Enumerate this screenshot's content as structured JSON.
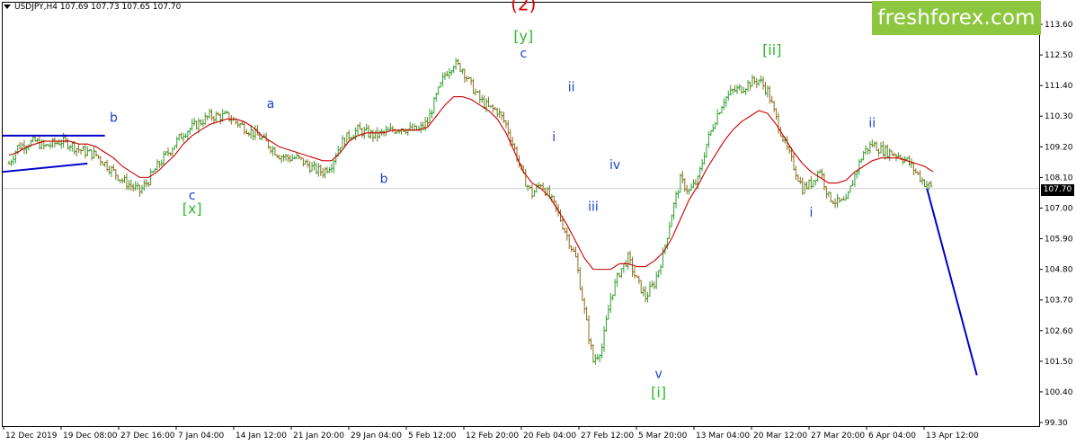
{
  "header": {
    "symbol_info": "USDJPY,H4  107.69 107.73 107.65 107.70"
  },
  "brand": {
    "label": "freshforex.com"
  },
  "current_price": {
    "label": "107.70"
  },
  "colors": {
    "bull": "#2ea02e",
    "bear": "#8b6d1a",
    "ma": "#cc0000",
    "trend": "#0000cc",
    "wave_blue": "#1a3fd4",
    "wave_green": "#2eb82e",
    "wave_red": "#dd0000",
    "brand": "#8dc63f"
  },
  "chart_data": {
    "type": "line",
    "title": "",
    "xlabel": "",
    "ylabel": "",
    "ylim": [
      99.3,
      114.15
    ],
    "y_ticks": [
      "113.60",
      "112.50",
      "111.40",
      "110.30",
      "109.20",
      "108.10",
      "107.00",
      "105.90",
      "104.80",
      "103.70",
      "102.60",
      "101.50",
      "100.40",
      "99.30"
    ],
    "x_ticks": [
      "12 Dec 2019",
      "19 Dec 08:00",
      "27 Dec 16:00",
      "7 Jan 04:00",
      "14 Jan 12:00",
      "21 Jan 20:00",
      "29 Jan 04:00",
      "5 Feb 12:00",
      "12 Feb 20:00",
      "20 Feb 04:00",
      "27 Feb 12:00",
      "5 Mar 20:00",
      "13 Mar 04:00",
      "20 Mar 12:00",
      "27 Mar 20:00",
      "6 Apr 04:00",
      "13 Apr 12:00"
    ],
    "current_price": 107.7,
    "series": [
      {
        "values": [
          108.6,
          109.2,
          109.3,
          109.4,
          109.2,
          109.3,
          109.4,
          109.3,
          109.1,
          109.0,
          108.9,
          108.6,
          108.3,
          108.0,
          107.8,
          107.6,
          108.0,
          108.5,
          108.9,
          109.3,
          109.7,
          109.9,
          110.1,
          110.3,
          110.3,
          110.3,
          110.1,
          109.9,
          109.7,
          109.5,
          109.2,
          108.9,
          108.8,
          108.8,
          108.6,
          108.4,
          108.3,
          108.6,
          109.3,
          109.6,
          109.8,
          109.7,
          109.6,
          109.7,
          109.8,
          109.9,
          109.8,
          109.8,
          110.1,
          111.0,
          111.8,
          112.2,
          112.0,
          111.4,
          110.9,
          110.6,
          110.5,
          110.0,
          109.1,
          108.1,
          107.5,
          107.9,
          107.4,
          106.8,
          106.0,
          105.2,
          103.3,
          101.5,
          102.0,
          103.8,
          104.7,
          105.2,
          104.4,
          103.8,
          104.3,
          105.3,
          106.8,
          108.0,
          107.6,
          108.0,
          109.3,
          110.2,
          110.9,
          111.2,
          111.3,
          111.5,
          111.6,
          111.2,
          110.2,
          109.3,
          108.5,
          107.7,
          107.9,
          108.4,
          107.4,
          107.2,
          107.2,
          108.2,
          109.0,
          109.3,
          109.1,
          109.0,
          108.9,
          108.7,
          108.3,
          107.9,
          107.7
        ]
      },
      {
        "values": [
          108.9,
          109.0,
          109.2,
          109.3,
          109.4,
          109.4,
          109.4,
          109.4,
          109.3,
          109.3,
          109.2,
          109.0,
          108.8,
          108.5,
          108.3,
          108.1,
          108.1,
          108.3,
          108.6,
          108.9,
          109.3,
          109.6,
          109.8,
          110.0,
          110.1,
          110.2,
          110.2,
          110.1,
          109.9,
          109.6,
          109.4,
          109.2,
          109.1,
          109.0,
          108.9,
          108.8,
          108.7,
          108.7,
          109.0,
          109.4,
          109.6,
          109.7,
          109.7,
          109.7,
          109.8,
          109.8,
          109.8,
          109.8,
          109.9,
          110.3,
          110.7,
          111.0,
          111.0,
          110.9,
          110.7,
          110.5,
          110.2,
          109.7,
          109.0,
          108.3,
          107.9,
          107.7,
          107.4,
          106.9,
          106.4,
          105.8,
          105.2,
          104.8,
          104.8,
          104.8,
          105.0,
          105.0,
          104.9,
          104.9,
          105.1,
          105.4,
          105.9,
          106.6,
          107.3,
          107.8,
          108.4,
          108.9,
          109.4,
          109.8,
          110.1,
          110.3,
          110.5,
          110.4,
          110.0,
          109.5,
          109.0,
          108.6,
          108.3,
          108.1,
          107.9,
          107.9,
          108.0,
          108.3,
          108.5,
          108.7,
          108.8,
          108.8,
          108.8,
          108.7,
          108.6,
          108.5,
          108.3
        ]
      }
    ],
    "trend_lines": [
      {
        "x": [
          0,
          11
        ],
        "y": [
          109.6,
          109.6
        ]
      },
      {
        "x": [
          0,
          9
        ],
        "y": [
          108.3,
          108.6
        ]
      },
      {
        "x": [
          106,
          111
        ],
        "y": [
          107.7,
          101.0
        ]
      }
    ],
    "wave_labels": [
      {
        "text": "(2)",
        "x": 59,
        "y": 114.1,
        "color": "red"
      },
      {
        "text": "[y]",
        "x": 59,
        "y": 113.0,
        "color": "green"
      },
      {
        "text": "c",
        "x": 59,
        "y": 112.4,
        "color": "blue"
      },
      {
        "text": "b",
        "x": 12,
        "y": 110.1,
        "color": "blue"
      },
      {
        "text": "a",
        "x": 30,
        "y": 110.6,
        "color": "blue"
      },
      {
        "text": "c",
        "x": 21,
        "y": 107.3,
        "color": "blue"
      },
      {
        "text": "[x]",
        "x": 21,
        "y": 106.8,
        "color": "green"
      },
      {
        "text": "b",
        "x": 43,
        "y": 107.9,
        "color": "blue"
      },
      {
        "text": "ii",
        "x": 64.5,
        "y": 111.2,
        "color": "blue"
      },
      {
        "text": "i",
        "x": 62.5,
        "y": 109.4,
        "color": "blue"
      },
      {
        "text": "iv",
        "x": 69.5,
        "y": 108.4,
        "color": "blue"
      },
      {
        "text": "iii",
        "x": 67,
        "y": 106.9,
        "color": "blue"
      },
      {
        "text": "v",
        "x": 74.5,
        "y": 100.9,
        "color": "blue"
      },
      {
        "text": "[i]",
        "x": 74.5,
        "y": 100.2,
        "color": "green"
      },
      {
        "text": "[ii]",
        "x": 87.5,
        "y": 112.5,
        "color": "green"
      },
      {
        "text": "i",
        "x": 92,
        "y": 106.7,
        "color": "blue"
      },
      {
        "text": "ii",
        "x": 99,
        "y": 109.9,
        "color": "blue"
      }
    ]
  }
}
